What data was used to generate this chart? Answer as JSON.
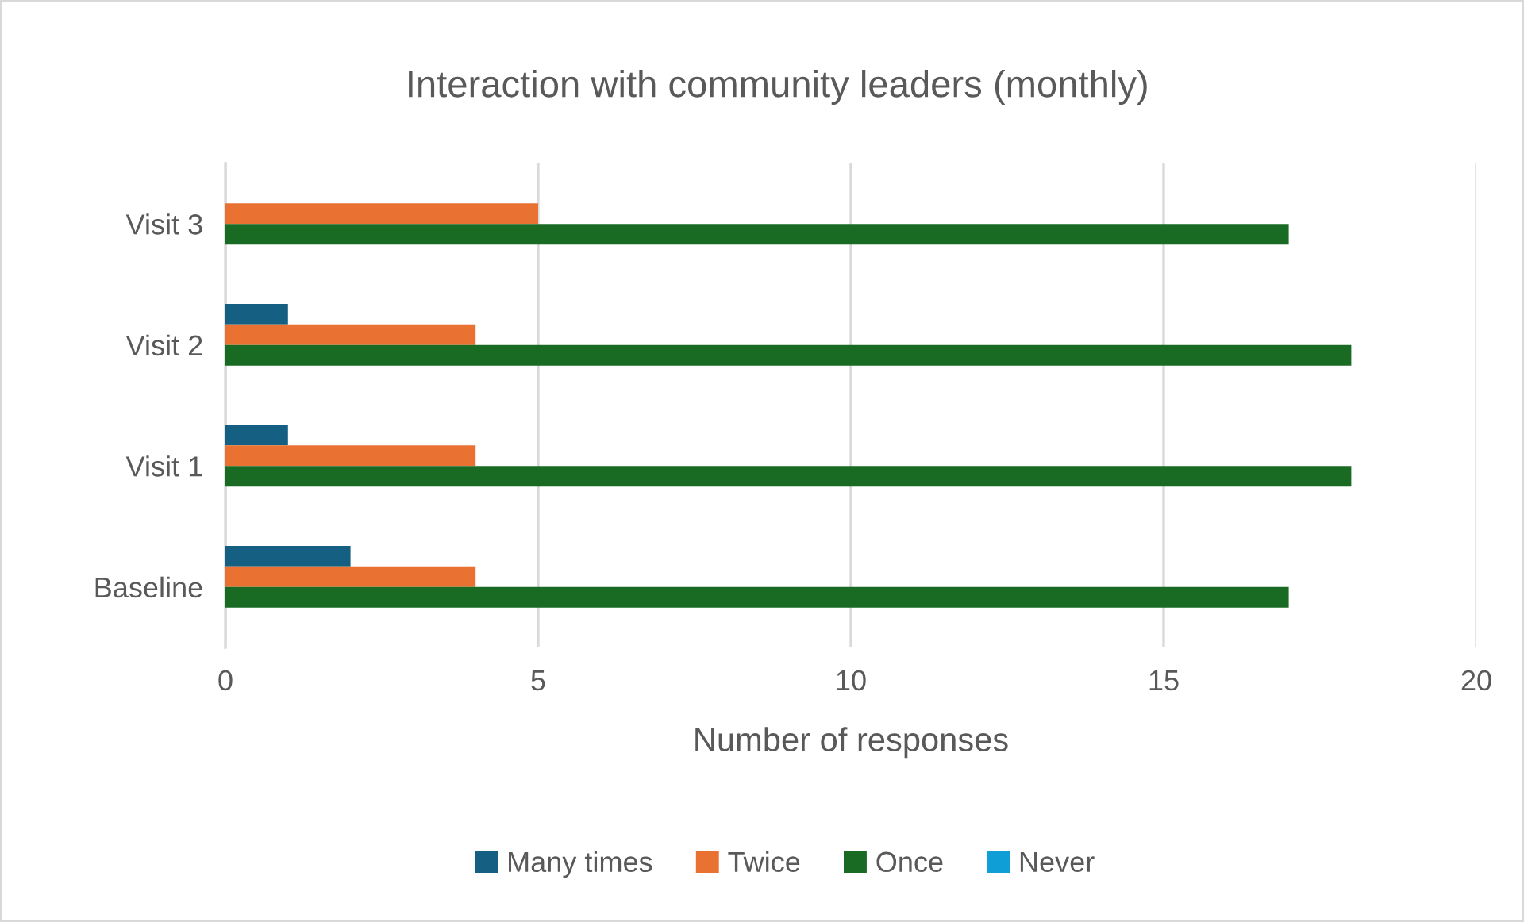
{
  "chart_data": {
    "type": "bar",
    "orientation": "horizontal",
    "title": "Interaction with community leaders (monthly)",
    "xlabel": "Number of responses",
    "categories": [
      "Visit 3",
      "Visit 2",
      "Visit 1",
      "Baseline"
    ],
    "series": [
      {
        "name": "Many times",
        "color": "#156082",
        "values": [
          0,
          1,
          1,
          2
        ]
      },
      {
        "name": "Twice",
        "color": "#e97132",
        "values": [
          5,
          4,
          4,
          4
        ]
      },
      {
        "name": "Once",
        "color": "#196b24",
        "values": [
          17,
          18,
          18,
          17
        ]
      },
      {
        "name": "Never",
        "color": "#0f9ed5",
        "values": [
          0,
          0,
          0,
          0
        ]
      }
    ],
    "xlim": [
      0,
      20
    ],
    "xticks": [
      0,
      5,
      10,
      15,
      20
    ],
    "grid": "x",
    "legend": "bottom"
  }
}
